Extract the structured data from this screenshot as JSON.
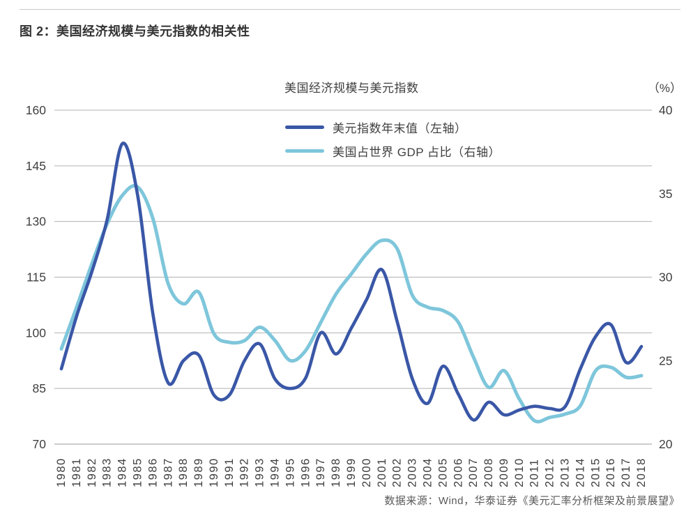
{
  "header": {
    "figure_title": "图 2：美国经济规模与美元指数的相关性"
  },
  "footer": {
    "source_note": "数据来源：Wind，华泰证券《美元汇率分析框架及前景展望》"
  },
  "colors": {
    "usd_index_line": "#3a57a7",
    "gdp_share_line": "#7ec6db",
    "gridline": "#b0b0b0",
    "axis_line": "#9a9a9a",
    "tick_text": "#3f3f3f"
  },
  "chart_data": {
    "type": "line",
    "title": "美国经济规模与美元指数",
    "right_axis_unit": "（%）",
    "grid": true,
    "legend_position": "top",
    "smoothed": true,
    "categories": [
      "1980",
      "1981",
      "1982",
      "1983",
      "1984",
      "1985",
      "1986",
      "1987",
      "1988",
      "1989",
      "1990",
      "1991",
      "1992",
      "1993",
      "1994",
      "1995",
      "1996",
      "1997",
      "1998",
      "1999",
      "2000",
      "2001",
      "2002",
      "2003",
      "2004",
      "2005",
      "2006",
      "2007",
      "2008",
      "2009",
      "2010",
      "2011",
      "2012",
      "2013",
      "2014",
      "2015",
      "2016",
      "2017",
      "2018"
    ],
    "series": [
      {
        "name": "美元指数年末值（左轴）",
        "axis": "left",
        "color": "#3a57a7",
        "values": [
          90.3,
          104.5,
          116.5,
          130.5,
          151.0,
          137.0,
          105.0,
          86.5,
          92.5,
          94.0,
          83.2,
          83.2,
          92.5,
          97.0,
          87.5,
          85.0,
          87.8,
          100.0,
          94.3,
          101.3,
          109.0,
          117.0,
          103.0,
          87.5,
          81.0,
          91.0,
          83.5,
          76.5,
          81.3,
          77.9,
          79.2,
          80.2,
          79.6,
          80.1,
          90.3,
          99.0,
          102.2,
          92.0,
          96.3
        ]
      },
      {
        "name": "美国占世界 GDP 占比（右轴）",
        "axis": "right",
        "color": "#7ec6db",
        "values": [
          25.7,
          28.2,
          30.8,
          33.2,
          34.9,
          35.4,
          33.5,
          29.6,
          28.4,
          29.1,
          26.6,
          26.1,
          26.2,
          27.0,
          26.2,
          25.0,
          25.6,
          27.3,
          29.0,
          30.2,
          31.4,
          32.2,
          31.7,
          28.9,
          28.2,
          28.0,
          27.3,
          25.2,
          23.4,
          24.4,
          22.7,
          21.4,
          21.6,
          21.8,
          22.3,
          24.4,
          24.6,
          24.0,
          24.1
        ]
      }
    ],
    "left_axis": {
      "min": 70,
      "max": 160,
      "ticks": [
        160,
        145,
        130,
        115,
        100,
        85,
        70
      ]
    },
    "right_axis": {
      "min": 20,
      "max": 40,
      "ticks": [
        40,
        35,
        30,
        25,
        20
      ]
    }
  }
}
